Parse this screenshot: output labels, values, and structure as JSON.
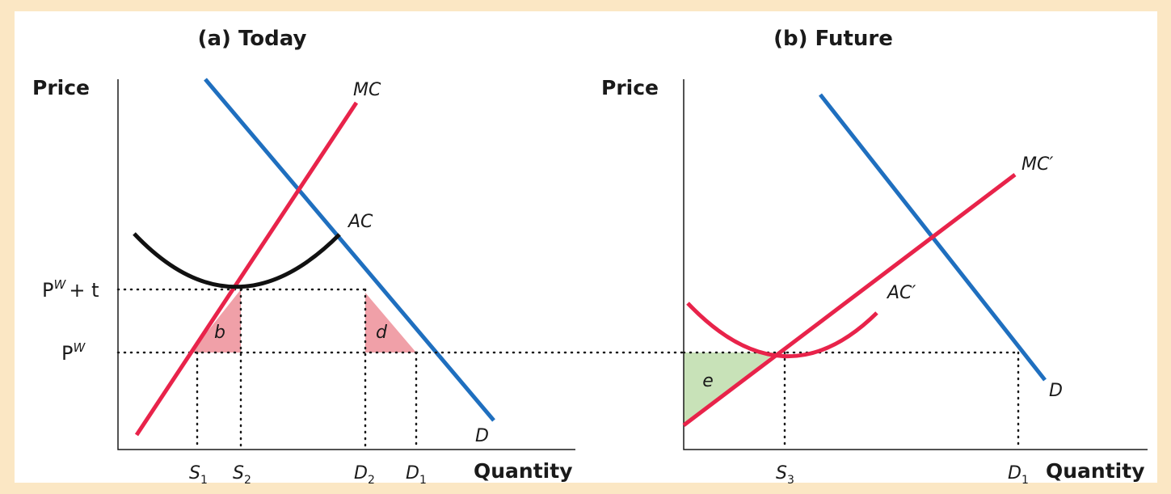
{
  "panel_a": {
    "title": "(a) Today",
    "y_axis_label": "Price",
    "x_axis_label": "Quantity",
    "curves": {
      "mc": "MC",
      "ac": "AC",
      "d": "D"
    },
    "price_ticks": {
      "pw_plus_t_base": "P",
      "pw_plus_t_sup": "W",
      "pw_plus_t_suffix": "+ t",
      "pw_base": "P",
      "pw_sup": "W"
    },
    "quantity_ticks": [
      {
        "main": "S",
        "sub": "1"
      },
      {
        "main": "S",
        "sub": "2"
      },
      {
        "main": "D",
        "sub": "2"
      },
      {
        "main": "D",
        "sub": "1"
      }
    ],
    "areas": {
      "b": "b",
      "d": "d"
    }
  },
  "panel_b": {
    "title": "(b) Future",
    "y_axis_label": "Price",
    "x_axis_label": "Quantity",
    "curves": {
      "mc": "MC′",
      "ac": "AC′",
      "d": "D"
    },
    "quantity_ticks": [
      {
        "main": "S",
        "sub": "3"
      },
      {
        "main": "D",
        "sub": "1"
      }
    ],
    "areas": {
      "e": "e"
    }
  },
  "colors": {
    "mc": "#e8234a",
    "demand": "#1f6fbf",
    "ac_today": "#111111",
    "ac_future": "#e8234a",
    "area_loss": "#f0a0a8",
    "area_gain": "#c8e2b8",
    "frame": "#fbe7c4"
  }
}
